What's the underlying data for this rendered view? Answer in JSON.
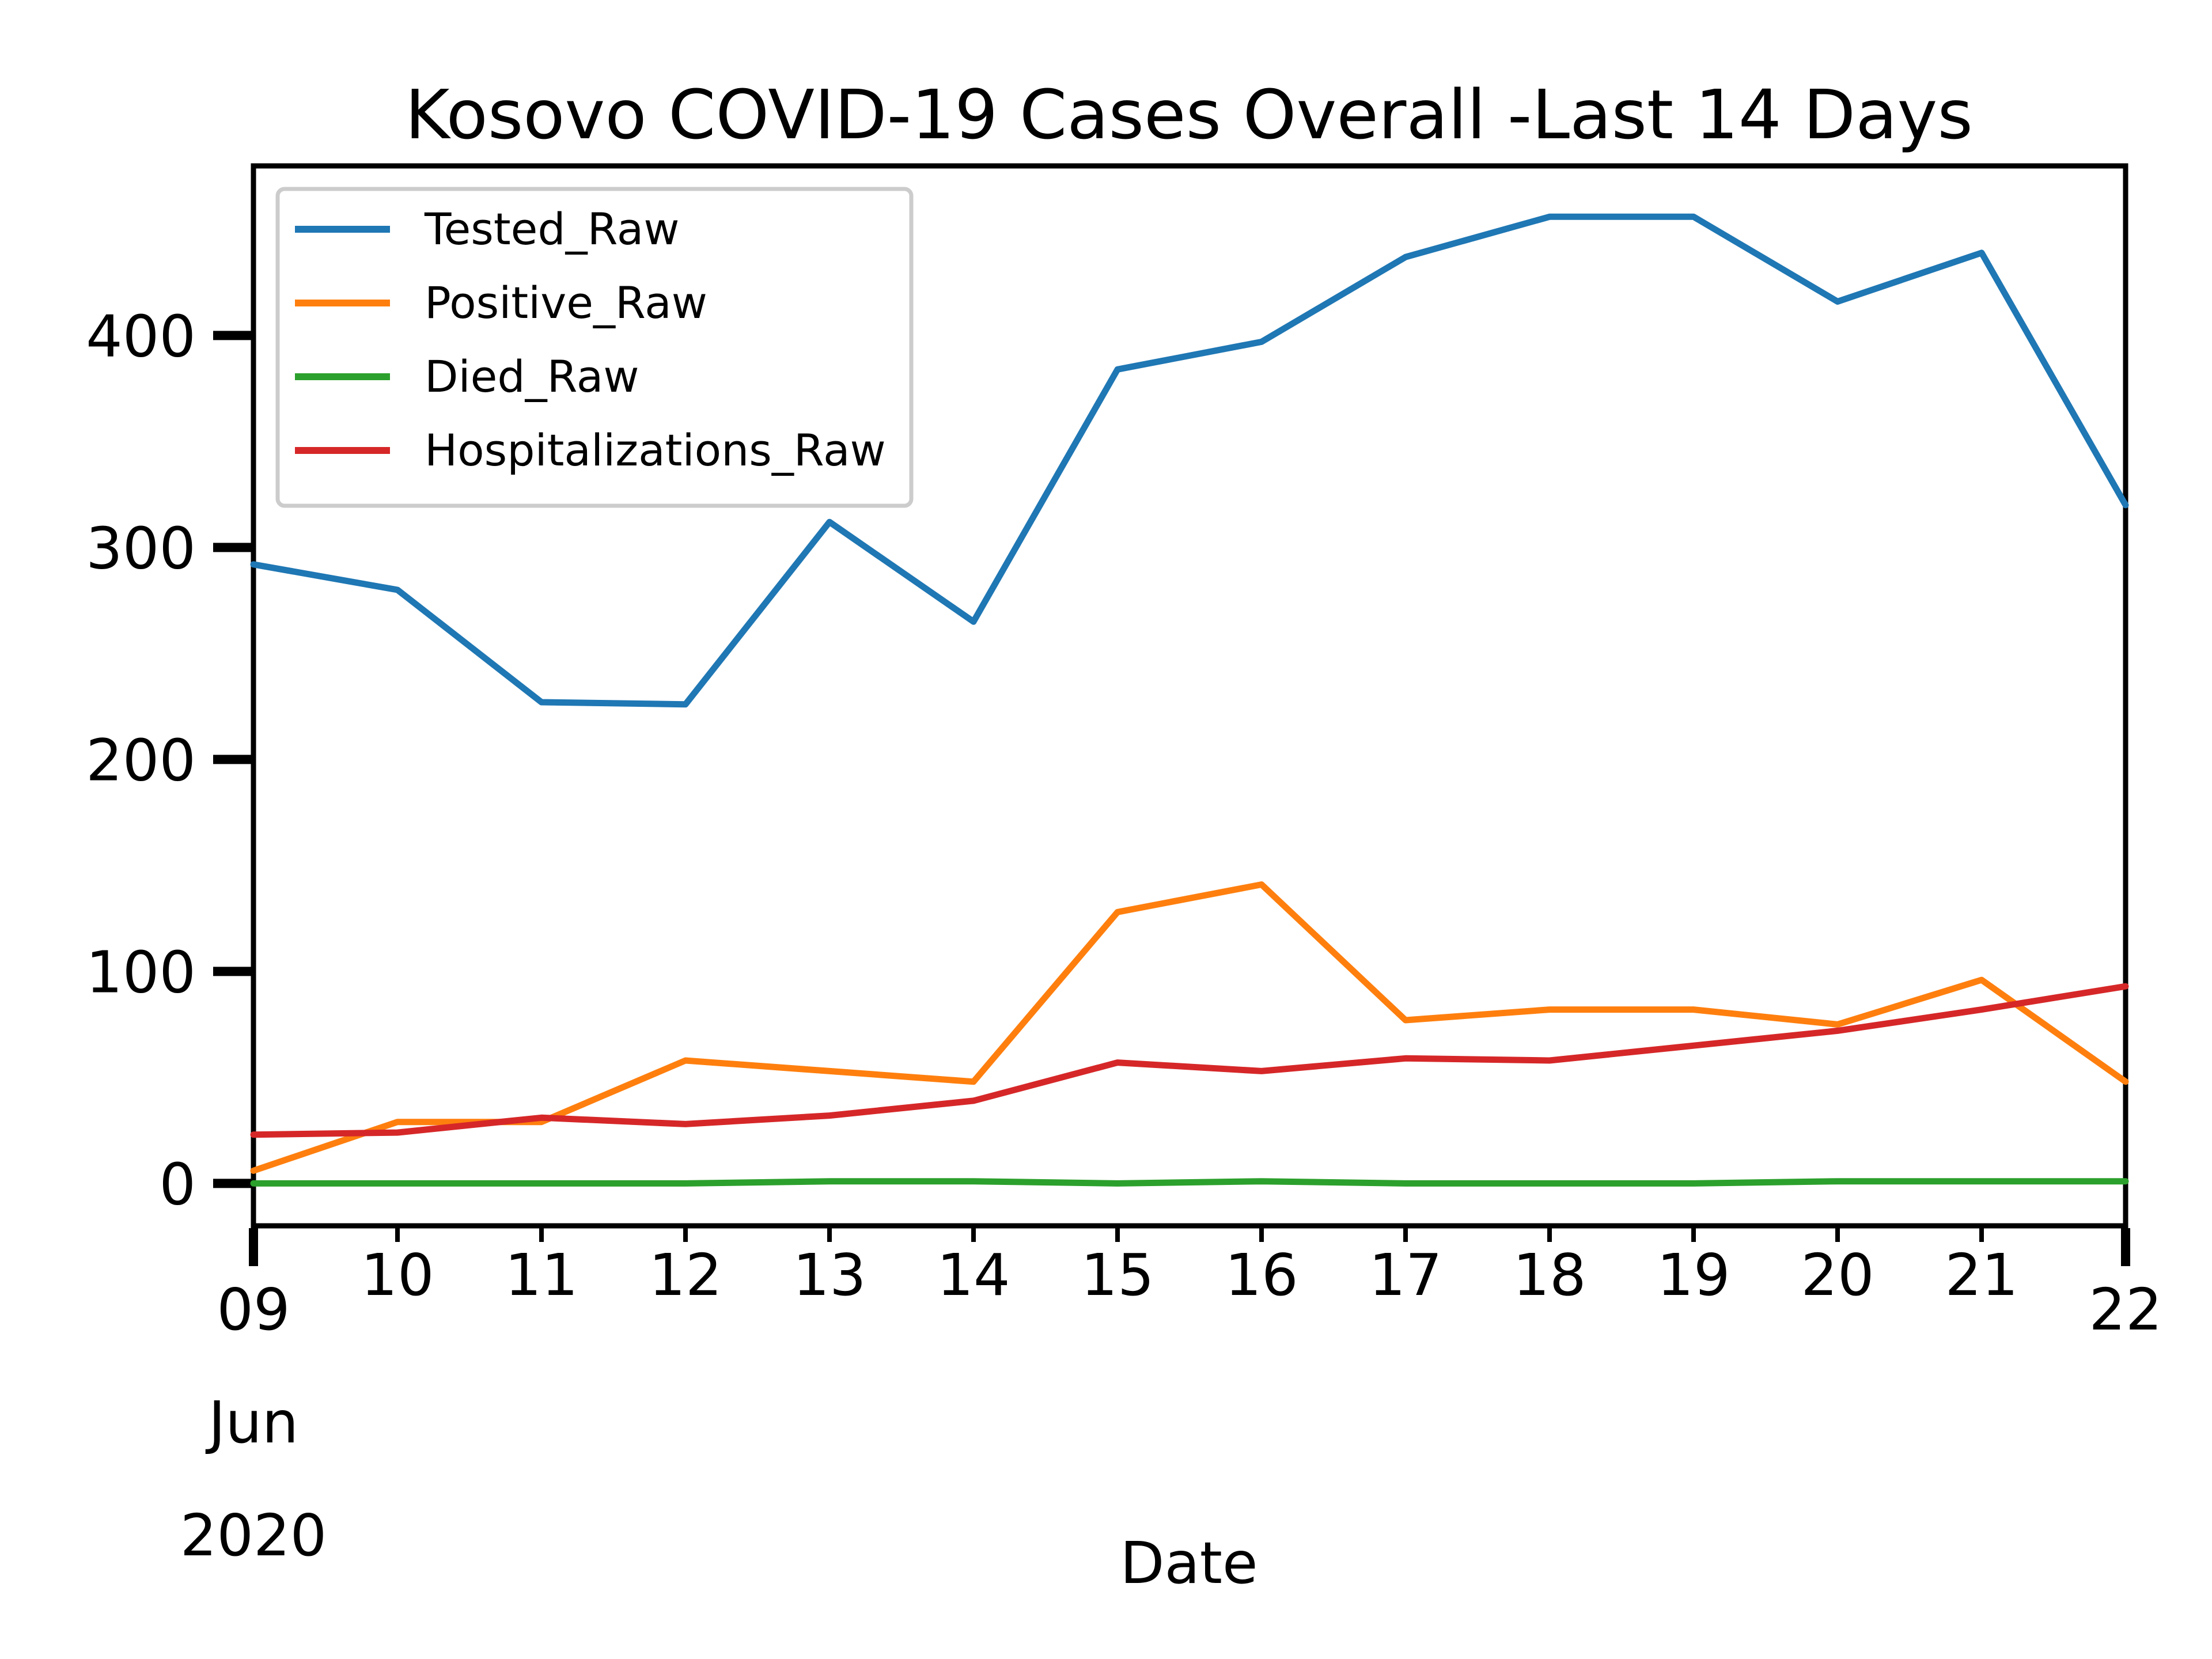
{
  "chart_data": {
    "type": "line",
    "title": "Kosovo COVID-19 Cases Overall -Last 14 Days",
    "xlabel": "Date",
    "ylabel": "",
    "x_unit": "date",
    "x": [
      "2020-06-09",
      "2020-06-10",
      "2020-06-11",
      "2020-06-12",
      "2020-06-13",
      "2020-06-14",
      "2020-06-15",
      "2020-06-16",
      "2020-06-17",
      "2020-06-18",
      "2020-06-19",
      "2020-06-20",
      "2020-06-21",
      "2020-06-22"
    ],
    "x_tick_labels": [
      [
        "09",
        "Jun",
        "2020"
      ],
      [
        "10"
      ],
      [
        "11"
      ],
      [
        "12"
      ],
      [
        "13"
      ],
      [
        "14"
      ],
      [
        "15"
      ],
      [
        "16"
      ],
      [
        "17"
      ],
      [
        "18"
      ],
      [
        "19"
      ],
      [
        "20"
      ],
      [
        "21"
      ],
      [
        "22"
      ]
    ],
    "xlim": [
      "2020-06-09",
      "2020-06-22"
    ],
    "ylim": [
      -20,
      480
    ],
    "y_ticks": [
      0,
      100,
      200,
      300,
      400
    ],
    "grid": false,
    "legend_position": "top-left",
    "series": [
      {
        "name": "Tested_Raw",
        "color": "#1f77b4",
        "values": [
          292,
          280,
          227,
          226,
          312,
          265,
          384,
          397,
          437,
          456,
          456,
          416,
          439,
          320
        ]
      },
      {
        "name": "Positive_Raw",
        "color": "#ff7f0e",
        "values": [
          6,
          29,
          29,
          58,
          53,
          48,
          128,
          141,
          77,
          82,
          82,
          75,
          96,
          48
        ]
      },
      {
        "name": "Died_Raw",
        "color": "#2ca02c",
        "values": [
          0,
          0,
          0,
          0,
          1,
          1,
          0,
          1,
          0,
          0,
          0,
          1,
          1,
          1
        ]
      },
      {
        "name": "Hospitalizations_Raw",
        "color": "#d62728",
        "values": [
          23,
          24,
          31,
          28,
          32,
          39,
          57,
          53,
          59,
          58,
          65,
          72,
          82,
          93
        ]
      }
    ]
  }
}
